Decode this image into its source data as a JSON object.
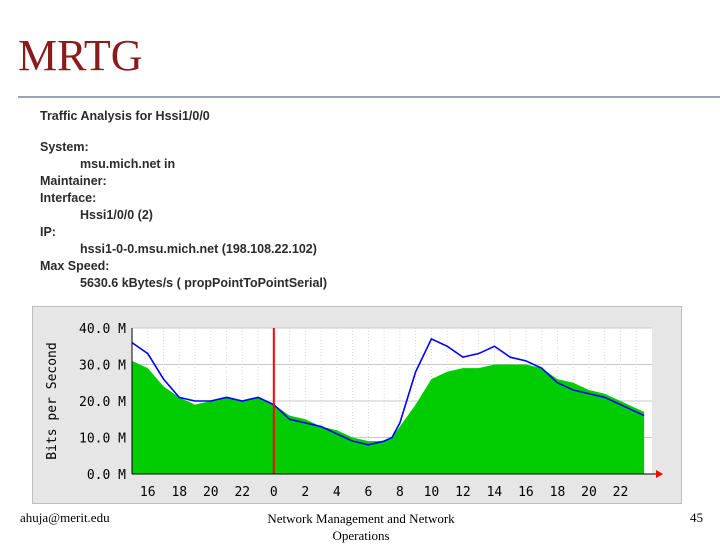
{
  "slide": {
    "title": "MRTG",
    "footer_left": "ahuja@merit.edu",
    "footer_center": "Network Management and Network Operations",
    "footer_right": "45"
  },
  "info": {
    "heading": "Traffic Analysis for Hssi1/0/0",
    "system_label": "System:",
    "system_value": "msu.mich.net in",
    "maintainer_label": "Maintainer:",
    "interface_label": "Interface:",
    "interface_value": "Hssi1/0/0 (2)",
    "ip_label": "IP:",
    "ip_value": "hssi1-0-0.msu.mich.net (198.108.22.102)",
    "maxspeed_label": "Max Speed:",
    "maxspeed_value": "5630.6 kBytes/s ( propPointToPointSerial)"
  },
  "colors": {
    "title": "#8b1a1a",
    "inbound": "#00cc00",
    "outbound": "#0000ff",
    "now": "#ff0000"
  },
  "chart_data": {
    "type": "area",
    "ylabel": "Bits per Second",
    "ylim": [
      0,
      40
    ],
    "y_ticks": [
      "0.0 M",
      "10.0 M",
      "20.0 M",
      "30.0 M",
      "40.0 M"
    ],
    "x_ticks": [
      "16",
      "18",
      "20",
      "22",
      "0",
      "2",
      "4",
      "6",
      "8",
      "10",
      "12",
      "14",
      "16",
      "18",
      "20",
      "22"
    ],
    "x_hours": [
      -8,
      -6,
      -4,
      -2,
      0,
      2,
      4,
      6,
      8,
      10,
      12,
      14,
      16,
      18,
      20,
      22
    ],
    "now_hour": 0,
    "series": [
      {
        "name": "inbound (green area)",
        "x": [
          -9,
          -8,
          -7,
          -6,
          -5,
          -4,
          -3,
          -2,
          -1,
          0,
          1,
          2,
          3,
          4,
          5,
          6,
          7,
          7.5,
          8,
          9,
          10,
          11,
          12,
          13,
          14,
          15,
          16,
          17,
          18,
          19,
          20,
          21,
          22,
          23,
          23.5
        ],
        "values": [
          31,
          29,
          24,
          21,
          19,
          20,
          21,
          20,
          21,
          19,
          16,
          15,
          13,
          12,
          10,
          9,
          9,
          10,
          13,
          19,
          26,
          28,
          29,
          29,
          30,
          30,
          30,
          29,
          26,
          25,
          23,
          22,
          20,
          18,
          17
        ]
      },
      {
        "name": "outbound (blue line)",
        "x": [
          -9,
          -8,
          -7,
          -6,
          -5,
          -4,
          -3,
          -2,
          -1,
          0,
          1,
          2,
          3,
          4,
          5,
          6,
          7,
          7.5,
          8,
          9,
          10,
          11,
          12,
          13,
          14,
          15,
          16,
          17,
          18,
          19,
          20,
          21,
          22,
          23,
          23.5
        ],
        "values": [
          36,
          33,
          26,
          21,
          20,
          20,
          21,
          20,
          21,
          19,
          15,
          14,
          13,
          11,
          9,
          8,
          9,
          10,
          14,
          28,
          37,
          35,
          32,
          33,
          35,
          32,
          31,
          29,
          25,
          23,
          22,
          21,
          19,
          17,
          16
        ]
      }
    ]
  }
}
